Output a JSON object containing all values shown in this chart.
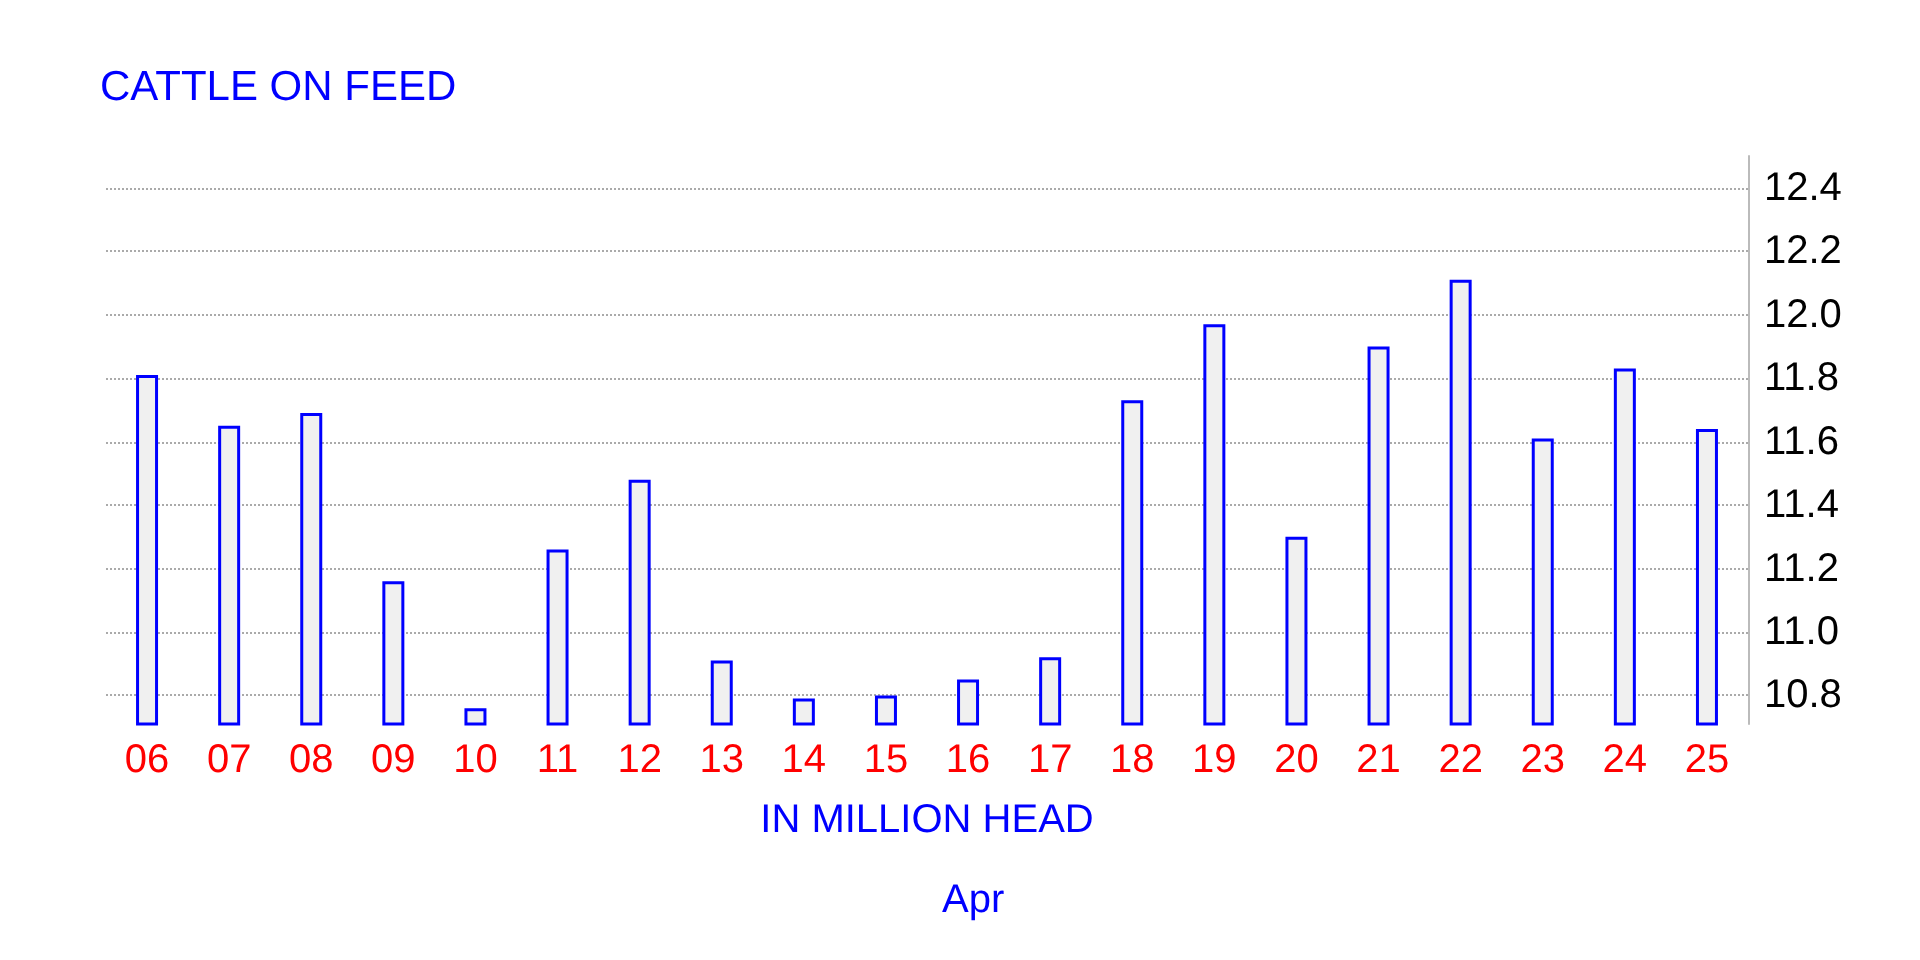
{
  "chart_data": {
    "type": "bar",
    "title": "CATTLE ON FEED",
    "xlabel": "IN MILLION HEAD",
    "annotations": [
      "Apr"
    ],
    "categories": [
      "06",
      "07",
      "08",
      "09",
      "10",
      "11",
      "12",
      "13",
      "14",
      "15",
      "16",
      "17",
      "18",
      "19",
      "20",
      "21",
      "22",
      "23",
      "24",
      "25"
    ],
    "values": [
      11.81,
      11.65,
      11.69,
      11.16,
      10.76,
      11.26,
      11.48,
      10.91,
      10.79,
      10.8,
      10.85,
      10.92,
      11.73,
      11.97,
      11.3,
      11.9,
      12.11,
      11.61,
      11.83,
      11.64
    ],
    "color": "#0000ff",
    "ylim": [
      10.71,
      12.5
    ],
    "yticks": [
      10.8,
      {
        "value": 11,
        "label": "11.0"
      },
      11.2,
      11.4,
      11.6,
      11.8,
      {
        "value": 12,
        "label": "12.0"
      },
      12.2,
      12.4
    ],
    "grid": "y"
  }
}
